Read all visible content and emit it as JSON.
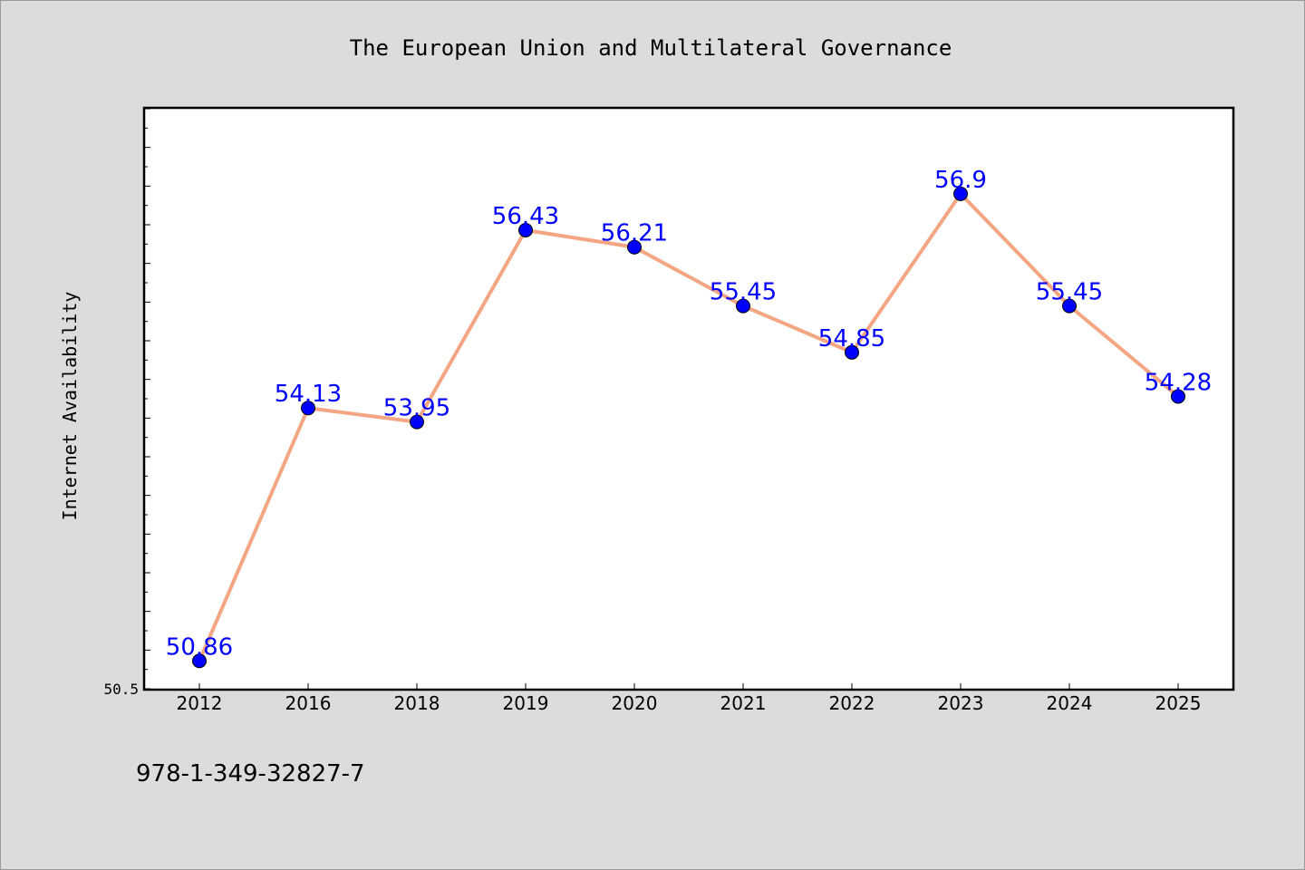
{
  "chart_data": {
    "type": "line",
    "title": "The European Union and Multilateral Governance",
    "xlabel": "",
    "ylabel": "Internet Availability",
    "categories": [
      "2012",
      "2016",
      "2018",
      "2019",
      "2020",
      "2021",
      "2022",
      "2023",
      "2024",
      "2025"
    ],
    "series": [
      {
        "values": [
          50.86,
          54.13,
          53.95,
          56.43,
          56.21,
          55.45,
          54.85,
          56.9,
          55.45,
          54.28
        ],
        "data_labels": [
          "50.86",
          "54.13",
          "53.95",
          "56.43",
          "56.21",
          "55.45",
          "54.85",
          "56.9",
          "55.45",
          "54.28"
        ]
      }
    ],
    "ylim": [
      50.5,
      58.0
    ],
    "y_tick_labels": [
      "50.5"
    ],
    "grid": false,
    "colors": {
      "line": "#f4a582",
      "marker": "#0000ff",
      "data_label": "#0000ff",
      "background": "#dcdcdc",
      "plot_background": "#ffffff"
    }
  },
  "footer_text": "978-1-349-32827-7"
}
